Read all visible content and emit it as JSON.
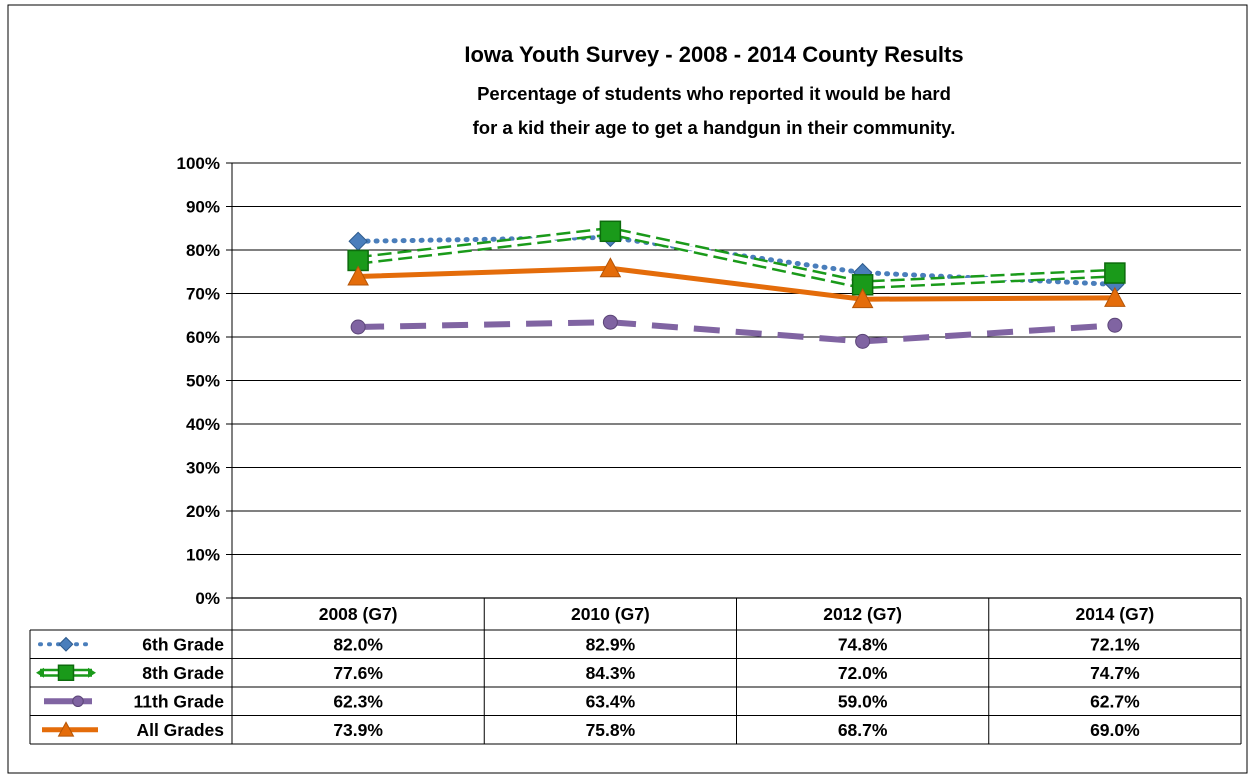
{
  "chart_data": {
    "type": "line",
    "title": "Iowa Youth Survey - 2008 - 2014 County Results",
    "subtitle_lines": [
      "Percentage of students who reported it would be hard",
      "for a kid their age to get a handgun in their community."
    ],
    "categories": [
      "2008 (G7)",
      "2010 (G7)",
      "2012 (G7)",
      "2014 (G7)"
    ],
    "ylim": [
      0,
      100
    ],
    "y_ticks": [
      "0%",
      "10%",
      "20%",
      "30%",
      "40%",
      "50%",
      "60%",
      "70%",
      "80%",
      "90%",
      "100%"
    ],
    "grid": true,
    "legend": "data-table-below",
    "series": [
      {
        "name": "6th Grade",
        "values": [
          82.0,
          82.9,
          74.8,
          72.1
        ],
        "labels": [
          "82.0%",
          "82.9%",
          "74.8%",
          "72.1%"
        ],
        "color": "#4a7ebb",
        "line_style": "dotted",
        "marker": "diamond"
      },
      {
        "name": "8th Grade",
        "values": [
          77.6,
          84.3,
          72.0,
          74.7
        ],
        "labels": [
          "77.6%",
          "84.3%",
          "72.0%",
          "74.7%"
        ],
        "color": "#1a9a1a",
        "line_style": "double-dashed",
        "marker": "square"
      },
      {
        "name": "11th Grade",
        "values": [
          62.3,
          63.4,
          59.0,
          62.7
        ],
        "labels": [
          "62.3%",
          "63.4%",
          "59.0%",
          "62.7%"
        ],
        "color": "#8064a2",
        "line_style": "long-dash",
        "marker": "circle"
      },
      {
        "name": "All Grades",
        "values": [
          73.9,
          75.8,
          68.7,
          69.0
        ],
        "labels": [
          "73.9%",
          "75.8%",
          "68.7%",
          "69.0%"
        ],
        "color": "#e46c0a",
        "line_style": "solid",
        "marker": "triangle"
      }
    ]
  }
}
